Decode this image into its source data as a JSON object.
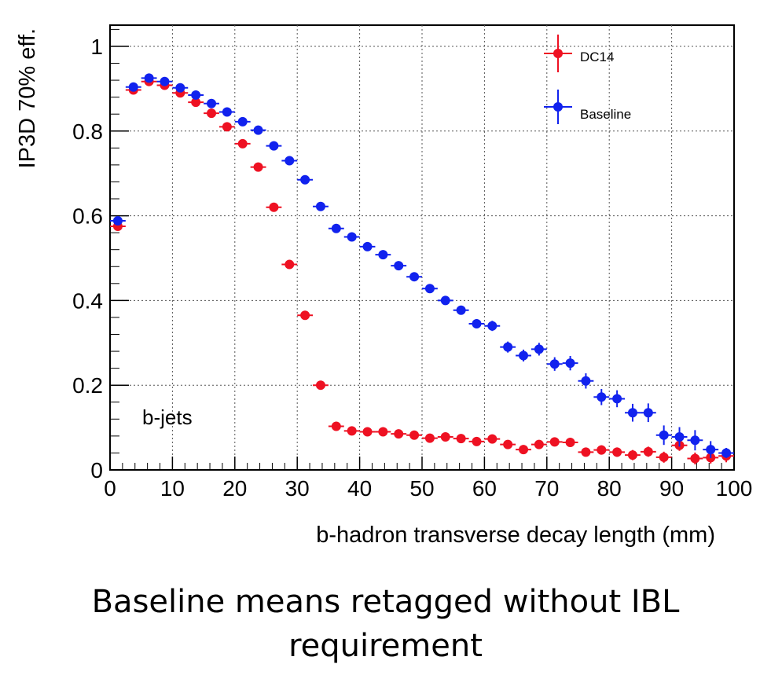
{
  "chart_data": {
    "type": "scatter",
    "xlabel": "b-hadron transverse decay length (mm)",
    "ylabel": "IP3D 70% eff.",
    "xlim": [
      0,
      100
    ],
    "ylim": [
      0,
      1.05
    ],
    "x_ticks": [
      "0",
      "10",
      "20",
      "30",
      "40",
      "50",
      "60",
      "70",
      "80",
      "90",
      "100"
    ],
    "y_ticks": [
      "0",
      "0.2",
      "0.4",
      "0.6",
      "0.8",
      "1"
    ],
    "grid": true,
    "legend": "top-right",
    "annotation": "b-jets",
    "x": [
      1.25,
      3.75,
      6.25,
      8.75,
      11.25,
      13.75,
      16.25,
      18.75,
      21.25,
      23.75,
      26.25,
      28.75,
      31.25,
      33.75,
      36.25,
      38.75,
      41.25,
      43.75,
      46.25,
      48.75,
      51.25,
      53.75,
      56.25,
      58.75,
      61.25,
      63.75,
      66.25,
      68.75,
      71.25,
      73.75,
      76.25,
      78.75,
      81.25,
      83.75,
      86.25,
      88.75,
      91.25,
      93.75,
      96.25,
      98.75
    ],
    "series": [
      {
        "name": "DC14",
        "color": "#ee1122",
        "values": [
          0.575,
          0.897,
          0.917,
          0.908,
          0.89,
          0.868,
          0.842,
          0.81,
          0.77,
          0.715,
          0.62,
          0.485,
          0.365,
          0.2,
          0.103,
          0.092,
          0.09,
          0.09,
          0.085,
          0.082,
          0.075,
          0.078,
          0.074,
          0.067,
          0.073,
          0.06,
          0.048,
          0.06,
          0.066,
          0.065,
          0.042,
          0.047,
          0.042,
          0.035,
          0.043,
          0.03,
          0.058,
          0.027,
          0.029,
          0.033
        ],
        "errors": [
          0.01,
          0.005,
          0.005,
          0.005,
          0.005,
          0.005,
          0.005,
          0.005,
          0.005,
          0.006,
          0.006,
          0.006,
          0.006,
          0.006,
          0.006,
          0.006,
          0.006,
          0.006,
          0.006,
          0.006,
          0.006,
          0.007,
          0.007,
          0.007,
          0.008,
          0.008,
          0.008,
          0.009,
          0.009,
          0.01,
          0.01,
          0.011,
          0.011,
          0.012,
          0.012,
          0.013,
          0.013,
          0.014,
          0.014,
          0.015
        ]
      },
      {
        "name": "Baseline",
        "color": "#1122ee",
        "values": [
          0.588,
          0.904,
          0.925,
          0.917,
          0.902,
          0.885,
          0.865,
          0.845,
          0.822,
          0.802,
          0.765,
          0.73,
          0.685,
          0.622,
          0.57,
          0.55,
          0.527,
          0.508,
          0.482,
          0.456,
          0.428,
          0.4,
          0.377,
          0.345,
          0.34,
          0.29,
          0.27,
          0.285,
          0.25,
          0.252,
          0.21,
          0.172,
          0.168,
          0.135,
          0.135,
          0.082,
          0.078,
          0.07,
          0.048,
          0.04
        ],
        "errors": [
          0.008,
          0.006,
          0.006,
          0.006,
          0.006,
          0.006,
          0.006,
          0.006,
          0.006,
          0.006,
          0.006,
          0.006,
          0.007,
          0.007,
          0.007,
          0.007,
          0.008,
          0.008,
          0.008,
          0.009,
          0.009,
          0.01,
          0.01,
          0.011,
          0.012,
          0.013,
          0.014,
          0.015,
          0.016,
          0.017,
          0.018,
          0.019,
          0.02,
          0.021,
          0.022,
          0.023,
          0.023,
          0.024,
          0.02,
          0.012
        ]
      }
    ]
  },
  "caption": {
    "line1": "Baseline means retagged without IBL",
    "line2": "requirement"
  }
}
